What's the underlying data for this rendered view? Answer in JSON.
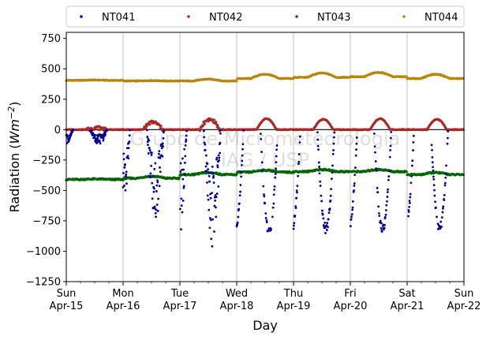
{
  "chart_data": {
    "type": "scatter",
    "title": "",
    "xlabel": "Day",
    "ylabel_main": "Radiation (",
    "ylabel_unit_base": "Wm",
    "ylabel_unit_exp": "−2",
    "ylabel_close": ")",
    "watermark": [
      "Grupo de Micrometeorologia",
      "IAG / USP"
    ],
    "ylim": [
      -1250,
      800
    ],
    "yticks": [
      {
        "value": 750,
        "label": "750"
      },
      {
        "value": 500,
        "label": "500"
      },
      {
        "value": 250,
        "label": "250"
      },
      {
        "value": 0,
        "label": "0"
      },
      {
        "value": -250,
        "label": "−250"
      },
      {
        "value": -500,
        "label": "−500"
      },
      {
        "value": -750,
        "label": "−750"
      },
      {
        "value": -1000,
        "label": "−1000"
      },
      {
        "value": -1250,
        "label": "−1250"
      }
    ],
    "xlim_days": [
      0,
      7
    ],
    "xticks": [
      {
        "day": 0,
        "weekday": "Sun",
        "date": "Apr-15"
      },
      {
        "day": 1,
        "weekday": "Mon",
        "date": "Apr-16"
      },
      {
        "day": 2,
        "weekday": "Tue",
        "date": "Apr-17"
      },
      {
        "day": 3,
        "weekday": "Wed",
        "date": "Apr-18"
      },
      {
        "day": 4,
        "weekday": "Thu",
        "date": "Apr-19"
      },
      {
        "day": 5,
        "weekday": "Fri",
        "date": "Apr-20"
      },
      {
        "day": 6,
        "weekday": "Sat",
        "date": "Apr-21"
      },
      {
        "day": 7,
        "weekday": "Sun",
        "date": "Apr-22"
      }
    ],
    "grid": "vertical",
    "zero_line": true,
    "legend": {
      "placement": "top",
      "columns": 4
    },
    "series": [
      {
        "name": "NT041",
        "color": "#00008b",
        "daily_min": [
          -130,
          -740,
          -1000,
          -880,
          -850,
          -860,
          -840
        ],
        "daily_baseline": 0
      },
      {
        "name": "NT042",
        "color": "#a52a2a",
        "daily_max": [
          15,
          60,
          85,
          90,
          85,
          90,
          85
        ],
        "daily_baseline": 0
      },
      {
        "name": "NT043",
        "color": "#006400",
        "daily_levels": [
          -410,
          -400,
          -370,
          -350,
          -345,
          -345,
          -370
        ]
      },
      {
        "name": "NT044",
        "color": "#b8860b",
        "daily_levels": [
          405,
          400,
          400,
          420,
          430,
          435,
          420
        ]
      }
    ]
  }
}
